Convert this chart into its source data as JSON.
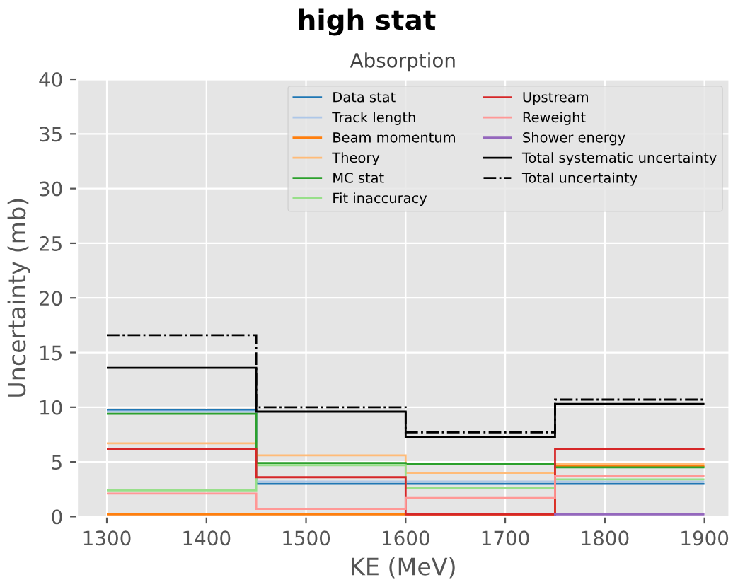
{
  "chart_data": {
    "type": "histogram",
    "title": "high stat",
    "subtitle": "Absorption",
    "xlabel": "KE (MeV)",
    "ylabel": "Uncertainty (mb)",
    "bins": [
      1300,
      1450,
      1600,
      1750,
      1900
    ],
    "series": [
      {
        "name": "Data stat",
        "color": "#1f77b4",
        "values": [
          9.7,
          3.0,
          3.0,
          3.0
        ]
      },
      {
        "name": "Track length",
        "color": "#aec7e8",
        "values": [
          9.6,
          3.2,
          3.2,
          3.2
        ]
      },
      {
        "name": "Beam momentum",
        "color": "#ff7f0e",
        "values": [
          0.2,
          0.2,
          0.2,
          4.6
        ]
      },
      {
        "name": "Theory",
        "color": "#ffbb78",
        "values": [
          6.7,
          5.6,
          4.0,
          4.8
        ]
      },
      {
        "name": "MC stat",
        "color": "#2ca02c",
        "values": [
          9.4,
          4.9,
          4.8,
          4.5
        ]
      },
      {
        "name": "Fit inaccuracy",
        "color": "#98df8a",
        "values": [
          2.4,
          4.7,
          2.6,
          3.4
        ]
      },
      {
        "name": "Upstream",
        "color": "#d62728",
        "values": [
          6.2,
          3.6,
          0.2,
          6.2
        ]
      },
      {
        "name": "Reweight",
        "color": "#ff9896",
        "values": [
          2.1,
          0.7,
          1.7,
          3.7
        ]
      },
      {
        "name": "Shower energy",
        "color": "#9467bd",
        "values": [
          0.0,
          0.0,
          0.0,
          0.2
        ]
      },
      {
        "name": "Total systematic uncertainty",
        "color": "#000000",
        "values": [
          13.6,
          9.6,
          7.3,
          10.3
        ]
      },
      {
        "name": "Total uncertainty",
        "color": "#000000",
        "line_style": "dashdot",
        "values": [
          16.6,
          10.0,
          7.7,
          10.7
        ]
      }
    ],
    "xlim": [
      1270,
      1925
    ],
    "ylim": [
      0,
      40
    ],
    "xticks": [
      1300,
      1400,
      1500,
      1600,
      1700,
      1800,
      1900
    ],
    "yticks": [
      0,
      5,
      10,
      15,
      20,
      25,
      30,
      35,
      40
    ],
    "grid": true,
    "legend": "top right"
  }
}
